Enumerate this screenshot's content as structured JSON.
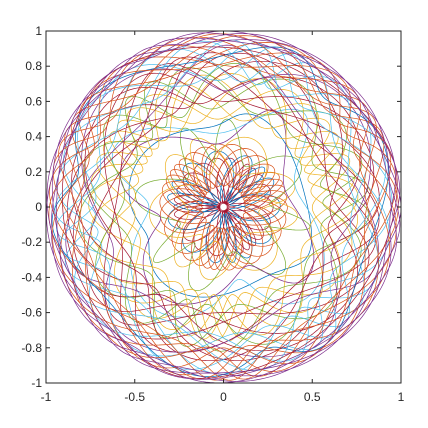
{
  "chart_data": {
    "type": "line",
    "title": "",
    "xlabel": "",
    "ylabel": "",
    "xlim": [
      -1,
      1
    ],
    "ylim": [
      -1,
      1
    ],
    "grid": false,
    "xticks": [
      -1,
      -0.5,
      0,
      0.5,
      1
    ],
    "xtick_labels": [
      "-1",
      "-0.5",
      "0",
      "0.5",
      "1"
    ],
    "yticks": [
      -1,
      -0.8,
      -0.6,
      -0.4,
      -0.2,
      0,
      0.2,
      0.4,
      0.6,
      0.8,
      1
    ],
    "ytick_labels": [
      "-1",
      "-0.8",
      "-0.6",
      "-0.4",
      "-0.2",
      "0",
      "0.2",
      "0.4",
      "0.6",
      "0.8",
      "1"
    ],
    "series": [
      {
        "color": "#A2142F",
        "r_inner": 0.02,
        "r_outer": 0.28
      },
      {
        "color": "#0072BD",
        "r_inner": 0.04,
        "r_outer": 0.32
      },
      {
        "color": "#D95319",
        "r_inner": 0.12,
        "r_outer": 0.36
      },
      {
        "color": "#EDB120",
        "r_inner": 0.2,
        "r_outer": 0.42
      },
      {
        "color": "#77AC30",
        "r_inner": 0.26,
        "r_outer": 0.5
      },
      {
        "color": "#0072BD",
        "r_inner": 0.46,
        "r_outer": 0.55
      },
      {
        "color": "#7E2F8E",
        "r_inner": 0.36,
        "r_outer": 0.62
      },
      {
        "color": "#4DBEEE",
        "r_inner": 0.42,
        "r_outer": 0.7
      },
      {
        "color": "#EDB120",
        "r_inner": 0.5,
        "r_outer": 0.76
      },
      {
        "color": "#77AC30",
        "r_inner": 0.56,
        "r_outer": 0.82
      },
      {
        "color": "#A2142F",
        "r_inner": 0.6,
        "r_outer": 0.88
      },
      {
        "color": "#7E2F8E",
        "r_inner": 0.66,
        "r_outer": 0.92
      },
      {
        "color": "#4DBEEE",
        "r_inner": 0.72,
        "r_outer": 0.95
      },
      {
        "color": "#0072BD",
        "r_inner": 0.84,
        "r_outer": 0.97
      },
      {
        "color": "#D95319",
        "r_inner": 0.8,
        "r_outer": 0.985
      },
      {
        "color": "#A2142F",
        "r_inner": 0.9,
        "r_outer": 0.995
      },
      {
        "color": "#7E2F8E",
        "r_inner": 0.94,
        "r_outer": 1.0
      }
    ]
  }
}
